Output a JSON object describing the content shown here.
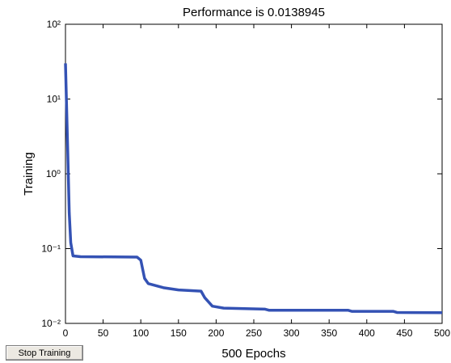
{
  "chart_data": {
    "type": "line",
    "title": "Performance is 0.0138945",
    "xlabel": "500 Epochs",
    "ylabel": "Training",
    "x": [
      0,
      3,
      5,
      7,
      10,
      20,
      95,
      100,
      105,
      110,
      130,
      150,
      180,
      185,
      195,
      210,
      265,
      270,
      375,
      380,
      435,
      440,
      500
    ],
    "series": [
      {
        "name": "Training",
        "color": "#3452b4",
        "values": [
          30,
          2,
          0.3,
          0.12,
          0.08,
          0.078,
          0.077,
          0.07,
          0.04,
          0.034,
          0.03,
          0.028,
          0.027,
          0.022,
          0.017,
          0.016,
          0.0155,
          0.015,
          0.015,
          0.0145,
          0.0145,
          0.014,
          0.0138945
        ]
      }
    ],
    "xlim": [
      0,
      500
    ],
    "xticks": [
      0,
      50,
      100,
      150,
      200,
      250,
      300,
      350,
      400,
      450,
      500
    ],
    "ylim": [
      0.01,
      100
    ],
    "yscale": "log",
    "yticks": [
      {
        "value": 0.01,
        "label": "10⁻²"
      },
      {
        "value": 0.1,
        "label": "10⁻¹"
      },
      {
        "value": 1,
        "label": "10⁰"
      },
      {
        "value": 10,
        "label": "10¹"
      },
      {
        "value": 100,
        "label": "10²"
      }
    ],
    "button": "Stop Training"
  }
}
